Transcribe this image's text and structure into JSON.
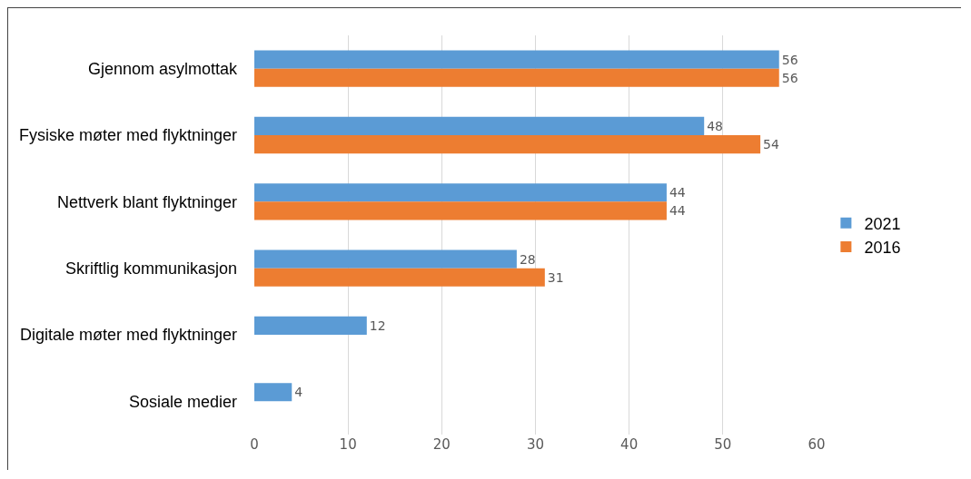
{
  "chart_data": {
    "type": "bar",
    "orientation": "horizontal",
    "categories": [
      "Gjennom asylmottak",
      "Fysiske møter med flyktninger",
      "Nettverk blant flyktninger",
      "Skriftlig kommunikasjon",
      "Digitale møter med flyktninger",
      "Sosiale medier"
    ],
    "series": [
      {
        "name": "2021",
        "color": "#5b9bd5",
        "values": [
          56,
          48,
          44,
          28,
          12,
          4
        ]
      },
      {
        "name": "2016",
        "color": "#ed7d31",
        "values": [
          56,
          54,
          44,
          31,
          null,
          null
        ]
      }
    ],
    "xlim": [
      0,
      60
    ],
    "xticks": [
      0,
      10,
      20,
      30,
      40,
      50,
      60
    ],
    "grid": "x",
    "legend": "right",
    "data_labels": true
  }
}
